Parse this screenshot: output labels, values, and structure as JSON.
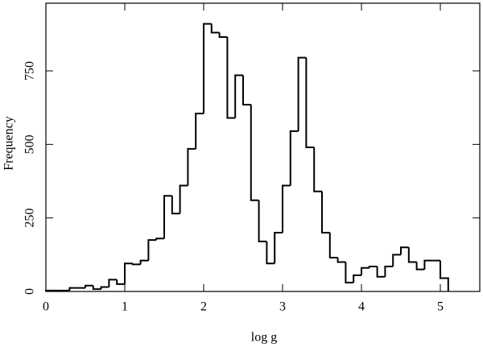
{
  "chart_data": {
    "type": "histogram",
    "x_label": "log g",
    "y_label": "Frequency",
    "bins": [
      0,
      0.1,
      0.2,
      0.3,
      0.4,
      0.5,
      0.6,
      0.7,
      0.8,
      0.9,
      1.0,
      1.1,
      1.2,
      1.3,
      1.4,
      1.5,
      1.6,
      1.7,
      1.8,
      1.9,
      2.0,
      2.1,
      2.2,
      2.3,
      2.4,
      2.5,
      2.6,
      2.7,
      2.8,
      2.9,
      3.0,
      3.1,
      3.2,
      3.3,
      3.4,
      3.5,
      3.6,
      3.7,
      3.8,
      3.9,
      4.0,
      4.1,
      4.2,
      4.3,
      4.4,
      4.5,
      4.6,
      4.7,
      4.8,
      4.9,
      5.0,
      5.1
    ],
    "values": [
      3,
      3,
      3,
      12,
      12,
      20,
      8,
      15,
      40,
      25,
      95,
      92,
      105,
      175,
      180,
      325,
      265,
      360,
      485,
      605,
      910,
      880,
      865,
      590,
      735,
      635,
      310,
      170,
      95,
      200,
      360,
      545,
      795,
      490,
      340,
      200,
      115,
      100,
      30,
      55,
      80,
      85,
      50,
      85,
      125,
      150,
      100,
      75,
      105,
      105,
      45
    ],
    "color": "#000000",
    "xlim": [
      0,
      5.5
    ],
    "xticks": [
      0,
      1,
      2,
      3,
      4,
      5
    ],
    "ylim": [
      0,
      980
    ],
    "yticks": [
      0,
      250,
      500,
      750
    ]
  }
}
